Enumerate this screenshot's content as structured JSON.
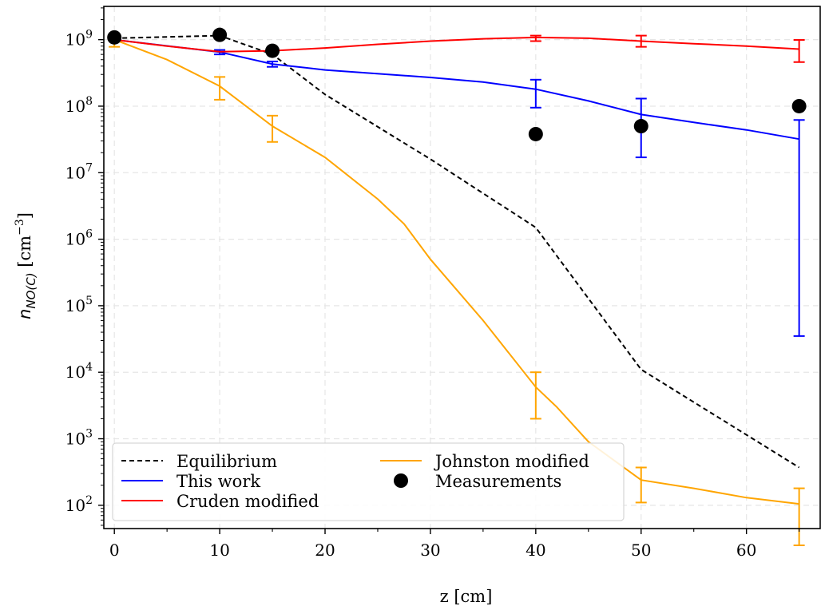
{
  "chart_data": {
    "type": "line",
    "title": "",
    "xlabel": "z [cm]",
    "ylabel": {
      "main": "n",
      "subscript": "NO(C)",
      "units": "[cm",
      "units_exp": "−3",
      "units_close": "]"
    },
    "xlim": [
      -1,
      67
    ],
    "ylim_log10": [
      1.65,
      9.5
    ],
    "yscale": "log",
    "grid": true,
    "legend_position": "lower-left",
    "x_ticks": [
      0,
      10,
      20,
      30,
      40,
      50,
      60
    ],
    "x_tick_labels": [
      "0",
      "10",
      "20",
      "30",
      "40",
      "50",
      "60"
    ],
    "y_tick_exponents": [
      2,
      3,
      4,
      5,
      6,
      7,
      8,
      9
    ],
    "y_tick_base": "10",
    "series": [
      {
        "name": "Equilibrium",
        "color": "#000000",
        "dash": "dashed",
        "x": [
          0,
          10,
          15,
          20,
          30,
          40,
          50,
          65
        ],
        "y": [
          1050000000.0,
          1150000000.0,
          600000000.0,
          150000000.0,
          16000000.0,
          1500000.0,
          11000.0,
          370.0
        ]
      },
      {
        "name": "This work",
        "color": "#0000ff",
        "dash": "solid",
        "x": [
          0,
          10,
          15,
          20,
          30,
          35,
          40,
          45,
          50,
          55,
          60,
          65
        ],
        "y": [
          1000000000.0,
          650000000.0,
          430000000.0,
          350000000.0,
          270000000.0,
          230000000.0,
          180000000.0,
          120000000.0,
          75000000.0,
          57000000.0,
          44000000.0,
          32000000.0
        ],
        "error_bars": [
          {
            "x": 10,
            "y": 650000000.0,
            "lo": 600000000.0,
            "hi": 700000000.0
          },
          {
            "x": 15,
            "y": 430000000.0,
            "lo": 390000000.0,
            "hi": 470000000.0
          },
          {
            "x": 40,
            "y": 175000000.0,
            "lo": 95000000.0,
            "hi": 250000000.0
          },
          {
            "x": 50,
            "y": 75000000.0,
            "lo": 17000000.0,
            "hi": 130000000.0
          },
          {
            "x": 65,
            "y": 32000000.0,
            "lo": 35000.0,
            "hi": 62000000.0
          }
        ]
      },
      {
        "name": "Cruden modified",
        "color": "#ff0000",
        "dash": "solid",
        "x": [
          0,
          5,
          10,
          15,
          20,
          25,
          30,
          35,
          40,
          45,
          50,
          55,
          60,
          65
        ],
        "y": [
          1000000000.0,
          800000000.0,
          660000000.0,
          680000000.0,
          750000000.0,
          850000000.0,
          950000000.0,
          1030000000.0,
          1080000000.0,
          1050000000.0,
          950000000.0,
          870000000.0,
          800000000.0,
          720000000.0
        ],
        "error_bars": [
          {
            "x": 40,
            "y": 1050000000.0,
            "lo": 950000000.0,
            "hi": 1150000000.0
          },
          {
            "x": 50,
            "y": 950000000.0,
            "lo": 780000000.0,
            "hi": 1150000000.0
          },
          {
            "x": 65,
            "y": 720000000.0,
            "lo": 460000000.0,
            "hi": 990000000.0
          }
        ]
      },
      {
        "name": "Johnston modified",
        "color": "#ffa500",
        "dash": "solid",
        "x": [
          0,
          5,
          10,
          15,
          20,
          25,
          27.5,
          30,
          35,
          40,
          42,
          45,
          50,
          55,
          60,
          65
        ],
        "y": [
          1000000000.0,
          500000000.0,
          200000000.0,
          50000000.0,
          17000000.0,
          4000000.0,
          1700000.0,
          500000.0,
          60000.0,
          6000.0,
          3000.0,
          900.0,
          240.0,
          180.0,
          130.0,
          105.0
        ],
        "error_bars": [
          {
            "x": 0,
            "y": 900000000.0,
            "lo": 780000000.0,
            "hi": 1000000000.0
          },
          {
            "x": 10,
            "y": 200000000.0,
            "lo": 125000000.0,
            "hi": 275000000.0
          },
          {
            "x": 15,
            "y": 48000000.0,
            "lo": 29000000.0,
            "hi": 72000000.0
          },
          {
            "x": 40,
            "y": 6000.0,
            "lo": 2000.0,
            "hi": 10000.0
          },
          {
            "x": 50,
            "y": 240.0,
            "lo": 110.0,
            "hi": 370.0
          },
          {
            "x": 65,
            "y": 105.0,
            "lo": 25.0,
            "hi": 180.0
          }
        ]
      },
      {
        "name": "Measurements",
        "color": "#000000",
        "marker": "circle",
        "x": [
          0,
          10,
          15,
          40,
          50,
          65
        ],
        "y": [
          1080000000.0,
          1180000000.0,
          680000000.0,
          38000000.0,
          50000000.0,
          100000000.0
        ]
      }
    ]
  }
}
